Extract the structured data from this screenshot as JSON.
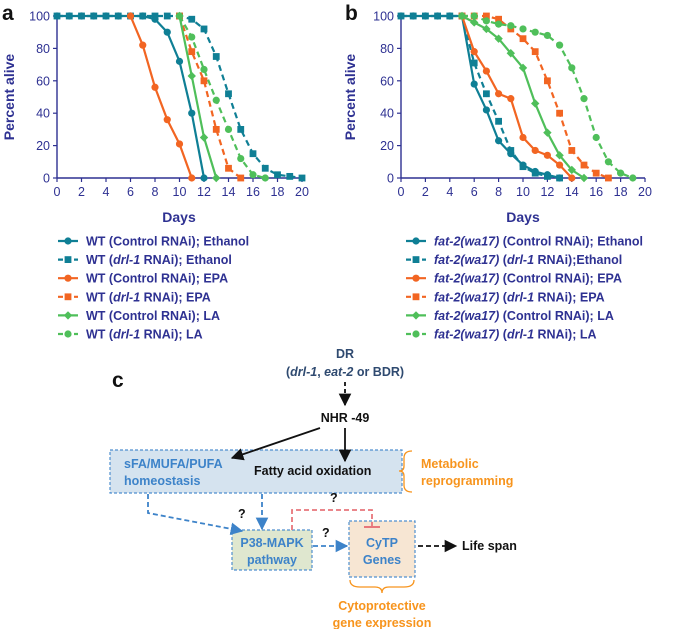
{
  "panels": {
    "a": "a",
    "b": "b",
    "c": "c"
  },
  "colors": {
    "axis": "#2e3192",
    "teal": "#0f7f95",
    "orange": "#f26522",
    "green": "#4fbf5a",
    "blue_text": "#3d83c9",
    "orange_text": "#f7941d",
    "red_dash": "#e8767b",
    "box_fill": "#d5e3ef",
    "green_box": "#dfe7cf",
    "tan_box": "#f7e6d3"
  },
  "chart_data": [
    {
      "id": "a",
      "type": "line",
      "xlabel": "Days",
      "ylabel": "Percent alive",
      "xlim": [
        0,
        20
      ],
      "ylim": [
        0,
        100
      ],
      "xticks": [
        0,
        2,
        4,
        6,
        8,
        10,
        12,
        14,
        16,
        18,
        20
      ],
      "yticks": [
        0,
        20,
        40,
        60,
        80,
        100
      ],
      "series": [
        {
          "key": "wt_ctrl_eth",
          "legend": {
            "prefix": "WT (Control RNAi); Ethanol"
          },
          "color": "#0f7f95",
          "dashed": false,
          "marker": "circle",
          "x": [
            0,
            1,
            2,
            3,
            4,
            5,
            6,
            7,
            8,
            9,
            10,
            11,
            12
          ],
          "y": [
            100,
            100,
            100,
            100,
            100,
            100,
            100,
            100,
            98,
            90,
            72,
            40,
            0
          ]
        },
        {
          "key": "wt_drl1_eth",
          "legend": {
            "prefix": "WT (",
            "italic": "drl-1",
            "suffix": " RNAi); Ethanol"
          },
          "color": "#0f7f95",
          "dashed": true,
          "marker": "square",
          "x": [
            0,
            1,
            2,
            3,
            4,
            5,
            6,
            7,
            8,
            9,
            10,
            11,
            12,
            13,
            14,
            15,
            16,
            17,
            18,
            19,
            20
          ],
          "y": [
            100,
            100,
            100,
            100,
            100,
            100,
            100,
            100,
            100,
            100,
            100,
            98,
            92,
            75,
            52,
            30,
            15,
            6,
            2,
            1,
            0
          ]
        },
        {
          "key": "wt_ctrl_epa",
          "legend": {
            "prefix": "WT (Control RNAi); EPA"
          },
          "color": "#f26522",
          "dashed": false,
          "marker": "circle",
          "x": [
            6,
            7,
            8,
            9,
            10,
            11
          ],
          "y": [
            100,
            82,
            56,
            36,
            21,
            0
          ]
        },
        {
          "key": "wt_drl1_epa",
          "legend": {
            "prefix": "WT (",
            "italic": "drl-1",
            "suffix": " RNAi); EPA"
          },
          "color": "#f26522",
          "dashed": true,
          "marker": "square",
          "x": [
            10,
            11,
            12,
            13,
            14,
            15
          ],
          "y": [
            100,
            78,
            60,
            30,
            6,
            0
          ]
        },
        {
          "key": "wt_ctrl_la",
          "legend": {
            "prefix": "WT (Control RNAi); LA"
          },
          "color": "#4fbf5a",
          "dashed": false,
          "marker": "diamond",
          "x": [
            10,
            11,
            12,
            13
          ],
          "y": [
            100,
            63,
            25,
            0
          ]
        },
        {
          "key": "wt_drl1_la",
          "legend": {
            "prefix": "WT (",
            "italic": "drl-1",
            "suffix": " RNAi); LA"
          },
          "color": "#4fbf5a",
          "dashed": true,
          "marker": "circle",
          "x": [
            10,
            11,
            12,
            13,
            14,
            15,
            16,
            17
          ],
          "y": [
            100,
            87,
            67,
            48,
            30,
            12,
            2,
            0
          ]
        }
      ]
    },
    {
      "id": "b",
      "type": "line",
      "xlabel": "Days",
      "ylabel": "Percent alive",
      "xlim": [
        0,
        20
      ],
      "ylim": [
        0,
        100
      ],
      "xticks": [
        0,
        2,
        4,
        6,
        8,
        10,
        12,
        14,
        16,
        18,
        20
      ],
      "yticks": [
        0,
        20,
        40,
        60,
        80,
        100
      ],
      "series": [
        {
          "key": "fat2_ctrl_eth",
          "legend": {
            "italic": "fat-2(wa17)",
            "suffix": " (Control RNAi); Ethanol"
          },
          "color": "#0f7f95",
          "dashed": false,
          "marker": "circle",
          "x": [
            0,
            1,
            2,
            3,
            4,
            5,
            6,
            7,
            8,
            9,
            10,
            11,
            12,
            13
          ],
          "y": [
            100,
            100,
            100,
            100,
            100,
            100,
            58,
            42,
            23,
            15,
            8,
            4,
            2,
            0
          ]
        },
        {
          "key": "fat2_drl1_eth",
          "legend": {
            "italic": "fat-2(wa17)",
            "mid": " (",
            "italic2": "drl-1",
            "suffix": " RNAi);Ethanol"
          },
          "color": "#0f7f95",
          "dashed": true,
          "marker": "square",
          "x": [
            0,
            1,
            2,
            3,
            4,
            5,
            6,
            7,
            8,
            9,
            10,
            11,
            12,
            13
          ],
          "y": [
            100,
            100,
            100,
            100,
            100,
            100,
            71,
            52,
            35,
            17,
            7,
            3,
            1,
            0
          ]
        },
        {
          "key": "fat2_ctrl_epa",
          "legend": {
            "italic": "fat-2(wa17)",
            "suffix": " (Control RNAi); EPA"
          },
          "color": "#f26522",
          "dashed": false,
          "marker": "circle",
          "x": [
            5,
            6,
            7,
            8,
            9,
            10,
            11,
            12,
            13,
            14
          ],
          "y": [
            100,
            78,
            66,
            52,
            49,
            25,
            17,
            14,
            8,
            0
          ]
        },
        {
          "key": "fat2_drl1_epa",
          "legend": {
            "italic": "fat-2(wa17)",
            "mid": " (",
            "italic2": "drl-1",
            "suffix": " RNAi); EPA"
          },
          "color": "#f26522",
          "dashed": true,
          "marker": "square",
          "x": [
            5,
            6,
            7,
            8,
            9,
            10,
            11,
            12,
            13,
            14,
            15,
            16,
            17
          ],
          "y": [
            100,
            100,
            100,
            98,
            92,
            86,
            78,
            60,
            40,
            17,
            8,
            3,
            0
          ]
        },
        {
          "key": "fat2_ctrl_la",
          "legend": {
            "italic": "fat-2(wa17)",
            "suffix": " (Control RNAi); LA"
          },
          "color": "#4fbf5a",
          "dashed": false,
          "marker": "diamond",
          "x": [
            5,
            6,
            7,
            8,
            9,
            10,
            11,
            12,
            13,
            14,
            15
          ],
          "y": [
            100,
            96,
            92,
            86,
            77,
            68,
            46,
            28,
            14,
            5,
            0
          ]
        },
        {
          "key": "fat2_drl1_la",
          "legend": {
            "italic": "fat-2(wa17)",
            "mid": " (",
            "italic2": "drl-1",
            "suffix": " RNAi); LA"
          },
          "color": "#4fbf5a",
          "dashed": true,
          "marker": "circle",
          "x": [
            5,
            6,
            7,
            8,
            9,
            10,
            11,
            12,
            13,
            14,
            15,
            16,
            17,
            18,
            19
          ],
          "y": [
            100,
            100,
            97,
            95,
            94,
            92,
            90,
            88,
            82,
            68,
            49,
            25,
            10,
            3,
            0
          ]
        }
      ]
    }
  ],
  "diagram": {
    "dr_title": "DR",
    "dr_open": "(",
    "dr_drl1": "drl-1",
    "dr_comma": ", ",
    "dr_eat2": "eat-2",
    "dr_tail": " or BDR)",
    "nhr": "NHR -49",
    "sfa_line1": "sFA/MUFA/PUFA",
    "sfa_line2": "homeostasis",
    "fatty_acid": "Fatty acid oxidation",
    "metabolic_line1": "Metabolic",
    "metabolic_line2": "reprogramming",
    "q1": "?",
    "q2": "?",
    "q3": "?",
    "p38_line1": "P38-MAPK",
    "p38_line2": "pathway",
    "cytp_line1": "CyTP",
    "cytp_line2": "Genes",
    "life_span": "Life span",
    "cyto_line1": "Cytoprotective",
    "cyto_line2": "gene expression"
  }
}
